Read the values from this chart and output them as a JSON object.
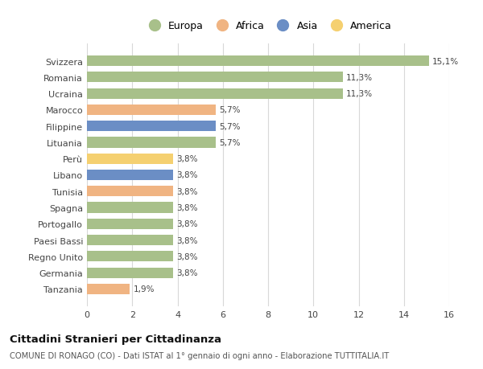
{
  "categories": [
    "Svizzera",
    "Romania",
    "Ucraina",
    "Marocco",
    "Filippine",
    "Lituania",
    "Perù",
    "Libano",
    "Tunisia",
    "Spagna",
    "Portogallo",
    "Paesi Bassi",
    "Regno Unito",
    "Germania",
    "Tanzania"
  ],
  "values": [
    15.1,
    11.3,
    11.3,
    5.7,
    5.7,
    5.7,
    3.8,
    3.8,
    3.8,
    3.8,
    3.8,
    3.8,
    3.8,
    3.8,
    1.9
  ],
  "labels": [
    "15,1%",
    "11,3%",
    "11,3%",
    "5,7%",
    "5,7%",
    "5,7%",
    "3,8%",
    "3,8%",
    "3,8%",
    "3,8%",
    "3,8%",
    "3,8%",
    "3,8%",
    "3,8%",
    "1,9%"
  ],
  "colors": [
    "#a8c08a",
    "#a8c08a",
    "#a8c08a",
    "#f0b482",
    "#6b8ec5",
    "#a8c08a",
    "#f5d070",
    "#6b8ec5",
    "#f0b482",
    "#a8c08a",
    "#a8c08a",
    "#a8c08a",
    "#a8c08a",
    "#a8c08a",
    "#f0b482"
  ],
  "legend_labels": [
    "Europa",
    "Africa",
    "Asia",
    "America"
  ],
  "legend_colors": [
    "#a8c08a",
    "#f0b482",
    "#6b8ec5",
    "#f5d070"
  ],
  "title": "Cittadini Stranieri per Cittadinanza",
  "subtitle": "COMUNE DI RONAGO (CO) - Dati ISTAT al 1° gennaio di ogni anno - Elaborazione TUTTITALIA.IT",
  "xlim": [
    0,
    16
  ],
  "xticks": [
    0,
    2,
    4,
    6,
    8,
    10,
    12,
    14,
    16
  ],
  "background_color": "#ffffff",
  "grid_color": "#d8d8d8",
  "bar_height": 0.65
}
